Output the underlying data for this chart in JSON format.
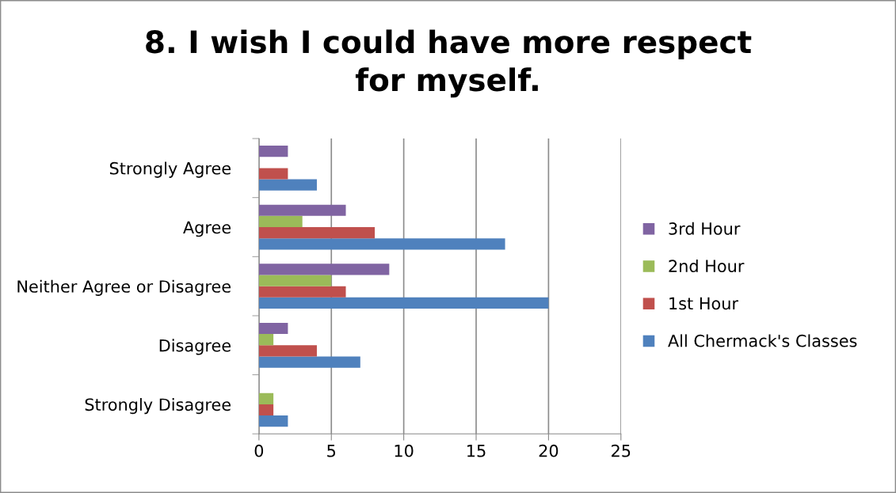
{
  "chart_data": {
    "type": "bar",
    "orientation": "horizontal",
    "title": "8. I wish I could have more respect for myself.",
    "categories": [
      "Strongly Agree",
      "Agree",
      "Neither Agree or Disagree",
      "Disagree",
      "Strongly Disagree"
    ],
    "series": [
      {
        "name": "All Chermack's Classes",
        "color": "#4f81bd",
        "values": [
          4,
          17,
          20,
          7,
          2
        ]
      },
      {
        "name": "1st Hour",
        "color": "#c0504d",
        "values": [
          2,
          8,
          6,
          4,
          1
        ]
      },
      {
        "name": "2nd Hour",
        "color": "#9bbb59",
        "values": [
          0,
          3,
          5,
          1,
          1
        ]
      },
      {
        "name": "3rd Hour",
        "color": "#8064a2",
        "values": [
          2,
          6,
          9,
          2,
          0
        ]
      }
    ],
    "xlim": [
      0,
      25
    ],
    "xticks": [
      0,
      5,
      10,
      15,
      20,
      25
    ],
    "grid": "x",
    "legend": "right"
  }
}
